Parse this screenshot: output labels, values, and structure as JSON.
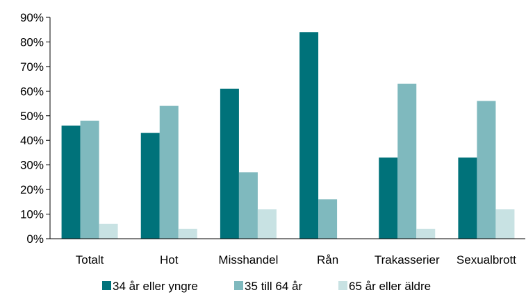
{
  "chart_data": {
    "type": "bar",
    "title": "",
    "xlabel": "",
    "ylabel": "",
    "categories": [
      "Totalt",
      "Hot",
      "Misshandel",
      "Rån",
      "Trakasserier",
      "Sexualbrott"
    ],
    "series": [
      {
        "name": "34 år eller yngre",
        "color": "#00727a",
        "values": [
          46,
          43,
          61,
          84,
          33,
          33
        ]
      },
      {
        "name": "35 till 64 år",
        "color": "#7fb9be",
        "values": [
          48,
          54,
          27,
          16,
          63,
          56
        ]
      },
      {
        "name": "65 år eller äldre",
        "color": "#c8e2e3",
        "values": [
          6,
          4,
          12,
          0,
          4,
          12
        ]
      }
    ],
    "ylim": [
      0,
      90
    ],
    "yticks": [
      0,
      10,
      20,
      30,
      40,
      50,
      60,
      70,
      80,
      90
    ],
    "ytick_format": "percent",
    "grid": false,
    "legend": "bottom"
  }
}
